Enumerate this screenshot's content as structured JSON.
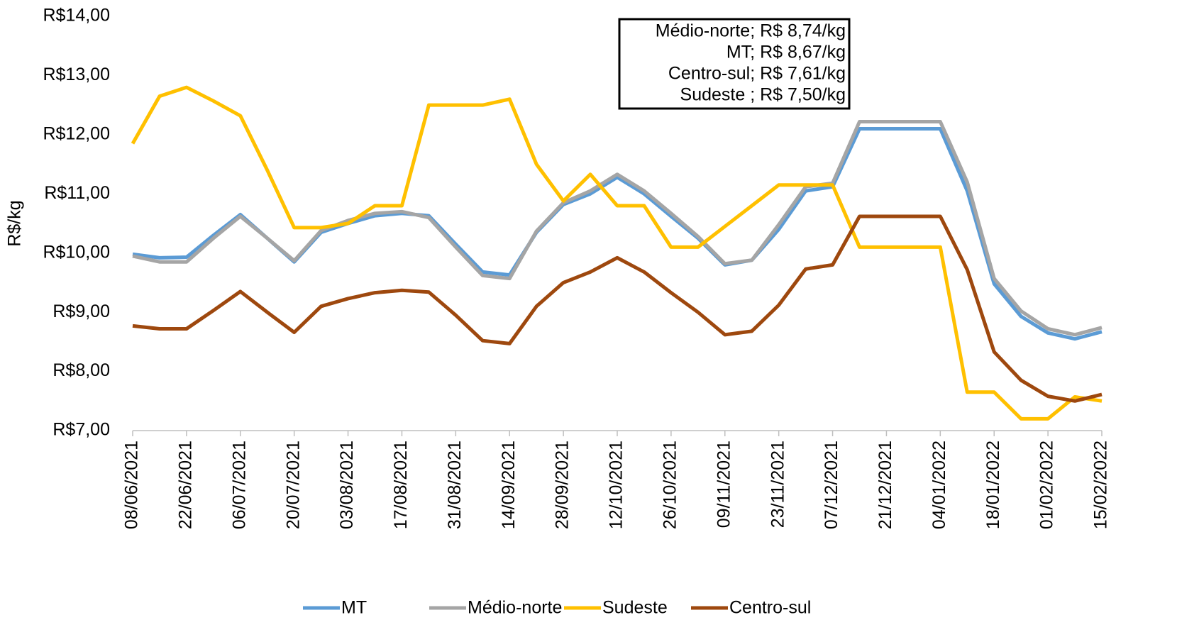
{
  "chart_data": {
    "type": "line",
    "y_label": "R$/kg",
    "annotations": [
      "Médio-norte; R$ 8,74/kg",
      "MT; R$ 8,67/kg",
      "Centro-sul; R$ 7,61/kg",
      "Sudeste ; R$ 7,50/kg"
    ],
    "categories": [
      "08/06/2021",
      null,
      "22/06/2021",
      null,
      "06/07/2021",
      null,
      "20/07/2021",
      null,
      "03/08/2021",
      null,
      "17/08/2021",
      null,
      "31/08/2021",
      null,
      "14/09/2021",
      null,
      "28/09/2021",
      null,
      "12/10/2021",
      null,
      "26/10/2021",
      null,
      "09/11/2021",
      null,
      "23/11/2021",
      null,
      "07/12/2021",
      null,
      "21/12/2021",
      null,
      "04/01/2022",
      null,
      "18/01/2022",
      null,
      "01/02/2022",
      null,
      "15/02/2022"
    ],
    "series": [
      {
        "name": "MT",
        "color": "#5b9bd5",
        "values": [
          9.98,
          9.92,
          9.93,
          10.3,
          10.65,
          10.25,
          9.85,
          10.35,
          10.5,
          10.63,
          10.67,
          10.63,
          10.15,
          9.68,
          9.63,
          10.35,
          10.82,
          11.0,
          11.28,
          11.0,
          10.62,
          10.25,
          9.8,
          9.88,
          10.4,
          11.05,
          11.12,
          12.1,
          12.1,
          12.1,
          12.1,
          11.05,
          9.48,
          8.93,
          8.65,
          8.55,
          8.67
        ]
      },
      {
        "name": "Médio-norte",
        "color": "#a5a5a5",
        "values": [
          9.95,
          9.85,
          9.85,
          10.25,
          10.62,
          10.25,
          9.87,
          10.38,
          10.55,
          10.67,
          10.7,
          10.6,
          10.1,
          9.62,
          9.57,
          10.37,
          10.85,
          11.05,
          11.33,
          11.05,
          10.67,
          10.28,
          9.82,
          9.88,
          10.48,
          11.12,
          11.18,
          12.22,
          12.22,
          12.22,
          12.22,
          11.2,
          9.57,
          9.02,
          8.72,
          8.62,
          8.74
        ]
      },
      {
        "name": "Sudeste",
        "color": "#ffc000",
        "values": [
          11.85,
          12.65,
          12.8,
          12.57,
          12.32,
          11.4,
          10.43,
          10.43,
          10.5,
          10.8,
          10.8,
          12.5,
          12.5,
          12.5,
          12.6,
          11.5,
          10.88,
          11.33,
          10.8,
          10.8,
          10.1,
          10.1,
          10.45,
          10.8,
          11.15,
          11.15,
          11.15,
          10.1,
          10.1,
          10.1,
          10.1,
          7.65,
          7.65,
          7.2,
          7.2,
          7.57,
          7.5
        ]
      },
      {
        "name": "Centro-sul",
        "color": "#9e480e",
        "values": [
          8.77,
          8.72,
          8.72,
          9.03,
          9.35,
          9.0,
          8.66,
          9.1,
          9.23,
          9.33,
          9.37,
          9.34,
          8.95,
          8.52,
          8.47,
          9.1,
          9.5,
          9.68,
          9.92,
          9.68,
          9.33,
          9.0,
          8.62,
          8.68,
          9.12,
          9.73,
          9.8,
          10.62,
          10.62,
          10.62,
          10.62,
          9.72,
          8.33,
          7.85,
          7.58,
          7.5,
          7.61
        ]
      }
    ],
    "ylim": [
      7,
      14
    ],
    "yticks": [
      {
        "value": 7,
        "label": "R$7,00"
      },
      {
        "value": 8,
        "label": "R$8,00"
      },
      {
        "value": 9,
        "label": "R$9,00"
      },
      {
        "value": 10,
        "label": "R$10,00"
      },
      {
        "value": 11,
        "label": "R$11,00"
      },
      {
        "value": 12,
        "label": "R$12,00"
      },
      {
        "value": 13,
        "label": "R$13,00"
      },
      {
        "value": 14,
        "label": "R$14,00"
      }
    ],
    "grid": false,
    "legend": "bottom"
  }
}
